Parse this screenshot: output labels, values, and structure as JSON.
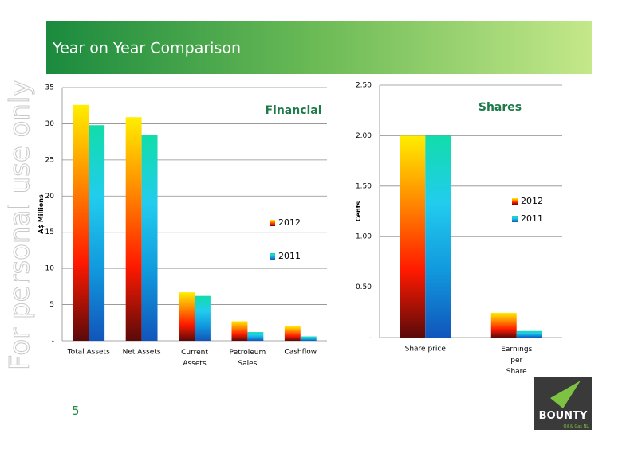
{
  "header": {
    "title": "Year on Year Comparison"
  },
  "watermark": "For personal use only",
  "page_number": "5",
  "logo": {
    "name": "BOUNTY",
    "tagline": "Oil & Gas NL"
  },
  "chart_data": [
    {
      "type": "bar",
      "title": "Financial",
      "y_label": "A$ Millions",
      "categories": [
        "Total Assets",
        "Net Assets",
        "Current Assets",
        "Petroleum Sales",
        "Cashflow"
      ],
      "series": [
        {
          "name": "2012",
          "colors": [
            "#ffee00",
            "#ff8800",
            "#ff1a00",
            "#5a0a0a"
          ],
          "values": [
            32.6,
            30.9,
            6.7,
            2.7,
            2.0
          ]
        },
        {
          "name": "2011",
          "colors": [
            "#11ddaa",
            "#22ccee",
            "#1199dd",
            "#1155bb"
          ],
          "values": [
            29.8,
            28.4,
            6.2,
            1.2,
            0.6
          ]
        }
      ],
      "ylim": [
        0,
        35
      ],
      "yticks": [
        {
          "value": 0,
          "label": "-"
        },
        5,
        10,
        15,
        20,
        25,
        30,
        35
      ],
      "grid": true,
      "legend": "right"
    },
    {
      "type": "bar",
      "title": "Shares",
      "y_label": "Cents",
      "categories": [
        "Share price",
        "Earnings per Share"
      ],
      "series": [
        {
          "name": "2012",
          "colors": [
            "#ffee00",
            "#ff8800",
            "#ff1a00",
            "#5a0a0a"
          ],
          "values": [
            2.0,
            0.245
          ]
        },
        {
          "name": "2011",
          "colors": [
            "#11ddaa",
            "#22ccee",
            "#1199dd",
            "#1155bb"
          ],
          "values": [
            2.0,
            0.065
          ]
        }
      ],
      "ylim": [
        0,
        2.5
      ],
      "yticks": [
        {
          "value": 0,
          "label": "-"
        },
        {
          "value": 0.5,
          "label": "0.50"
        },
        {
          "value": 1,
          "label": "1.00"
        },
        {
          "value": 1.5,
          "label": "1.50"
        },
        {
          "value": 2,
          "label": "2.00"
        },
        {
          "value": 2.5,
          "label": "2.50"
        }
      ],
      "grid": true,
      "legend": "right"
    }
  ]
}
